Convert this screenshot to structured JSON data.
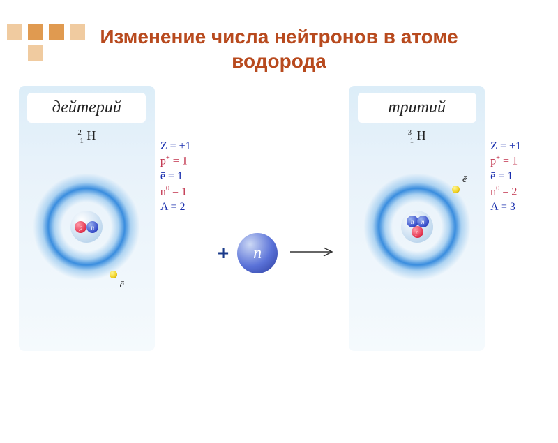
{
  "title_line1": "Изменение числа нейтронов в атоме",
  "title_line2": "водорода",
  "title_color": "#b84a1e",
  "deco": {
    "colors": [
      "#f0cba0",
      "#e09a50",
      "#f0cba0",
      "#e09a50",
      "#f0cba0"
    ]
  },
  "deuterium": {
    "label": "дейтерий",
    "mass": "2",
    "charge": "1",
    "element": "H",
    "protons": 1,
    "neutrons": 1,
    "props": [
      {
        "text": "Z = +1",
        "color": "#1a2fae"
      },
      {
        "html": "p<sup>+</sup> = 1",
        "color": "#c0304a"
      },
      {
        "text": "ē = 1",
        "color": "#1a2fae"
      },
      {
        "html": "n<sup>0</sup> = 1",
        "color": "#c0304a"
      },
      {
        "text": "A = 2",
        "color": "#1a2fae"
      }
    ]
  },
  "tritium": {
    "label": "тритий",
    "mass": "3",
    "charge": "1",
    "element": "H",
    "protons": 1,
    "neutrons": 2,
    "props": [
      {
        "text": "Z = +1",
        "color": "#1a2fae"
      },
      {
        "html": "p<sup>+</sup> = 1",
        "color": "#c0304a"
      },
      {
        "text": "ē = 1",
        "color": "#1a2fae"
      },
      {
        "html": "n<sup>0</sup> = 2",
        "color": "#c0304a"
      },
      {
        "text": "A = 3",
        "color": "#1a2fae"
      }
    ]
  },
  "plus_symbol": "+",
  "neutron_label": "n",
  "electron_label": "ē",
  "particle_labels": {
    "proton": "p",
    "neutron": "n"
  },
  "arrow_color": "#333333"
}
